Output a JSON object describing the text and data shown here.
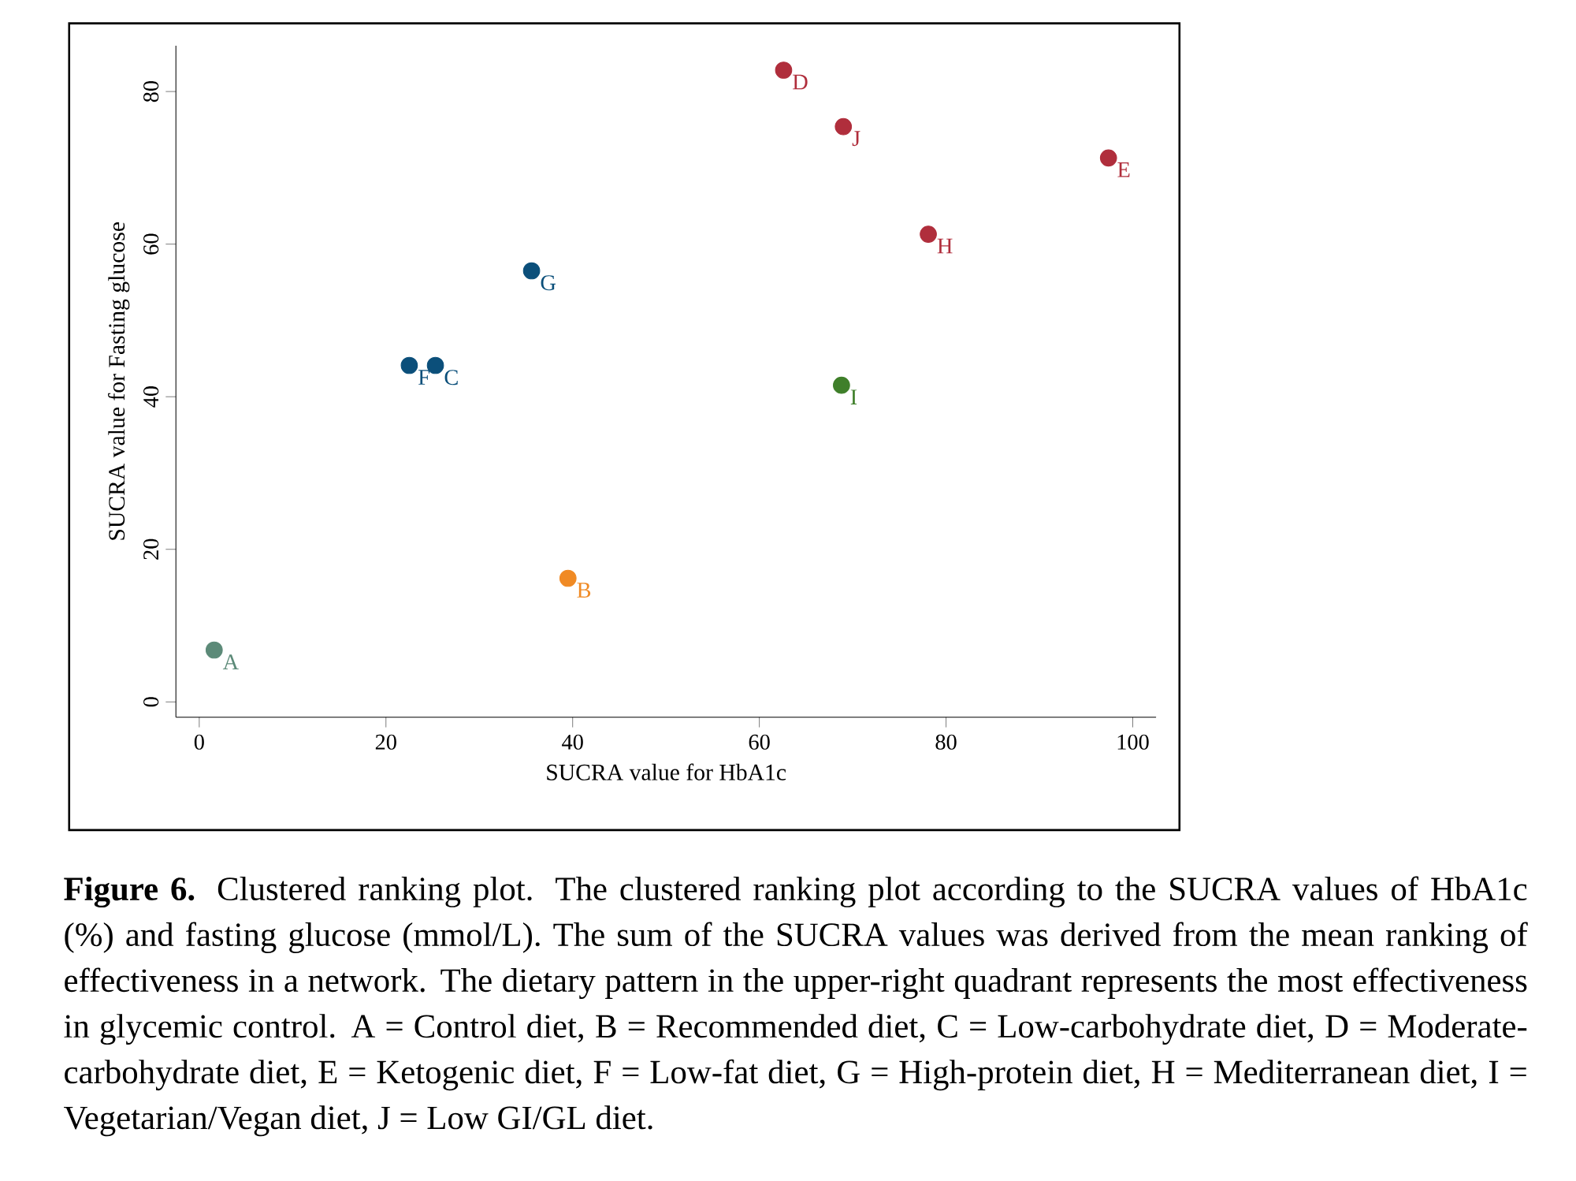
{
  "chart_data": {
    "type": "scatter",
    "xlabel": "SUCRA value for HbA1c",
    "ylabel": "SUCRA value for Fasting glucose",
    "xlim": [
      -2.5,
      102.5
    ],
    "ylim": [
      -2,
      86
    ],
    "xticks": [
      0,
      20,
      40,
      60,
      80,
      100
    ],
    "yticks": [
      0,
      20,
      40,
      60,
      80
    ],
    "grid": false,
    "legend": false,
    "marker": "circle",
    "series": [
      {
        "name": "A",
        "color": "#5c8a78",
        "x": [
          1.6
        ],
        "values": [
          6.8
        ]
      },
      {
        "name": "B",
        "color": "#f08a24",
        "x": [
          39.5
        ],
        "values": [
          16.2
        ]
      },
      {
        "name": "C",
        "color": "#0b4f7a",
        "x": [
          25.3
        ],
        "values": [
          44.1
        ]
      },
      {
        "name": "D",
        "color": "#b02e3c",
        "x": [
          62.6
        ],
        "values": [
          82.8
        ]
      },
      {
        "name": "E",
        "color": "#b02e3c",
        "x": [
          97.4
        ],
        "values": [
          71.3
        ]
      },
      {
        "name": "F",
        "color": "#0b4f7a",
        "x": [
          22.5
        ],
        "values": [
          44.1
        ]
      },
      {
        "name": "G",
        "color": "#0b4f7a",
        "x": [
          35.6
        ],
        "values": [
          56.5
        ]
      },
      {
        "name": "H",
        "color": "#b02e3c",
        "x": [
          78.1
        ],
        "values": [
          61.3
        ]
      },
      {
        "name": "I",
        "color": "#3f7f2a",
        "x": [
          68.8
        ],
        "values": [
          41.5
        ]
      },
      {
        "name": "J",
        "color": "#b02e3c",
        "x": [
          69.0
        ],
        "values": [
          75.4
        ]
      }
    ],
    "annotations": [
      "**Figure 6.** Clustered ranking plot. The clustered ranking plot according to the SUCRA values of HbA1c (%) and fasting glucose (mmol/L). The sum of the SUCRA values was derived from the mean ranking of effectiveness in a network. The dietary pattern in the upper-right quadrant represents the most effectiveness in glycemic control. A = Control diet, B = Recommended diet, C = Low-carbohydrate diet, D = Moderate-carbohydrate diet, E = Ketogenic diet, F = Low-fat diet, G = High-protein diet, H = Mediterranean diet, I = Vegetarian/Vegan diet, J = Low GI/GL diet."
    ]
  }
}
